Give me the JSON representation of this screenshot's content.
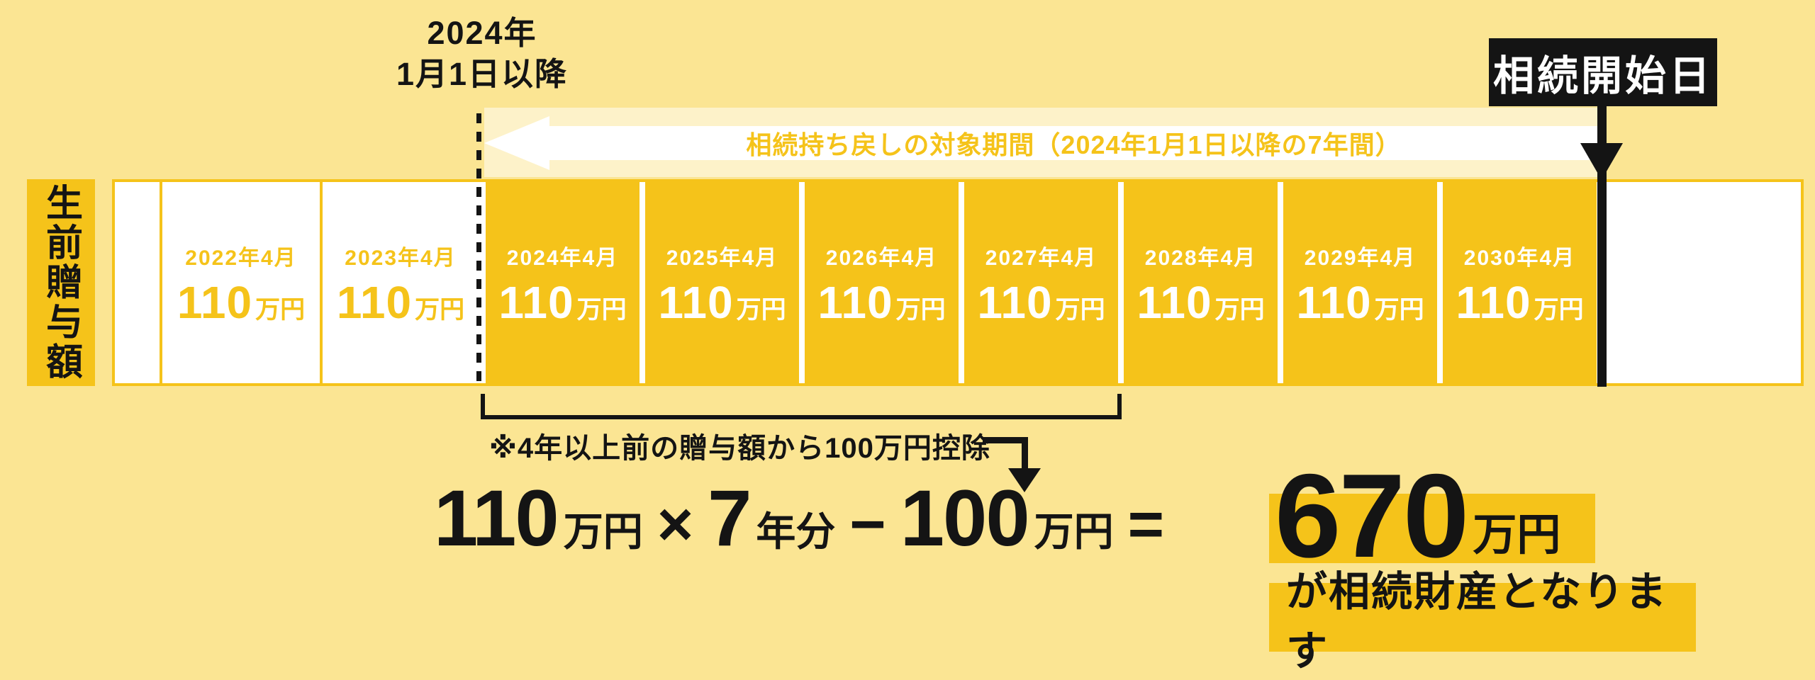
{
  "colors": {
    "background": "#FBE593",
    "gold": "#F5C31A",
    "black": "#141414",
    "white": "#FFFFFF"
  },
  "header": {
    "gift_rule_start_line1": "2024年",
    "gift_rule_start_line2": "1月1日以降",
    "clawback_period_label": "相続持ち戻しの対象期間（2024年1月1日以降の7年間）",
    "inheritance_start_label": "相続開始日"
  },
  "timeline": {
    "axis_label": "生前贈与額",
    "cells": [
      {
        "date": "2022年4月",
        "amount": "110",
        "unit": "万円"
      },
      {
        "date": "2023年4月",
        "amount": "110",
        "unit": "万円"
      },
      {
        "date": "2024年4月",
        "amount": "110",
        "unit": "万円"
      },
      {
        "date": "2025年4月",
        "amount": "110",
        "unit": "万円"
      },
      {
        "date": "2026年4月",
        "amount": "110",
        "unit": "万円"
      },
      {
        "date": "2027年4月",
        "amount": "110",
        "unit": "万円"
      },
      {
        "date": "2028年4月",
        "amount": "110",
        "unit": "万円"
      },
      {
        "date": "2029年4月",
        "amount": "110",
        "unit": "万円"
      },
      {
        "date": "2030年4月",
        "amount": "110",
        "unit": "万円"
      }
    ]
  },
  "deduction": {
    "note": "※4年以上前の贈与額から100万円控除"
  },
  "formula": {
    "amount": "110",
    "amount_unit": "万円",
    "multiply": "×",
    "years": "7",
    "years_unit": "年分",
    "minus": "−",
    "deduction": "100",
    "deduction_unit": "万円",
    "equals": "=",
    "result": "670",
    "result_unit": "万円",
    "caption": "が相続財産となります"
  }
}
